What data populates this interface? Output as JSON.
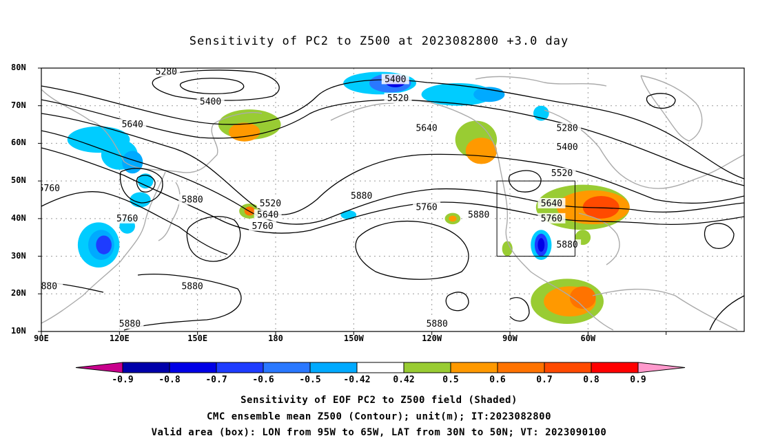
{
  "title": "Sensitivity of PC2 to Z500 at 2023082800 +3.0 day",
  "lat_labels": [
    "80N",
    "70N",
    "60N",
    "50N",
    "40N",
    "30N",
    "20N",
    "10N"
  ],
  "lon_labels": [
    "90E",
    "120E",
    "150E",
    "180",
    "150W",
    "120W",
    "90W",
    "60W"
  ],
  "colorbar": {
    "labels": [
      "-0.9",
      "-0.8",
      "-0.7",
      "-0.6",
      "-0.5",
      "-0.42",
      "0.42",
      "0.5",
      "0.6",
      "0.7",
      "0.8",
      "0.9"
    ],
    "colors": [
      "#c8008c",
      "#0000aa",
      "#0000e6",
      "#1e3cff",
      "#2a78ff",
      "#00aaff",
      "#00ccff",
      "#ffffff",
      "#99cc33",
      "#ff9900",
      "#ff7300",
      "#ff4a00",
      "#ff0000",
      "#ff99cc"
    ]
  },
  "contour_labels": [
    {
      "text": "5280",
      "lon": 138,
      "lat": 79
    },
    {
      "text": "5400",
      "lon": 155,
      "lat": 71
    },
    {
      "text": "5640",
      "lon": 125,
      "lat": 65
    },
    {
      "text": "5760",
      "lon": 93,
      "lat": 48
    },
    {
      "text": "5880",
      "lon": 148,
      "lat": 45
    },
    {
      "text": "5760",
      "lon": 123,
      "lat": 40
    },
    {
      "text": "5520",
      "lon": 178,
      "lat": 44
    },
    {
      "text": "5640",
      "lon": 177,
      "lat": 41
    },
    {
      "text": "5760",
      "lon": 175,
      "lat": 38
    },
    {
      "text": "5880",
      "lon": 148,
      "lat": 22
    },
    {
      "text": "5880",
      "lon": 124,
      "lat": 12
    },
    {
      "text": "880",
      "lon": 93,
      "lat": 22
    },
    {
      "text": "5880",
      "lon": -147,
      "lat": 46
    },
    {
      "text": "5400",
      "lon": -134,
      "lat": 77
    },
    {
      "text": "5520",
      "lon": -133,
      "lat": 72
    },
    {
      "text": "5640",
      "lon": -122,
      "lat": 64
    },
    {
      "text": "5760",
      "lon": -122,
      "lat": 43
    },
    {
      "text": "5880",
      "lon": -102,
      "lat": 41
    },
    {
      "text": "5880",
      "lon": -118,
      "lat": 12
    },
    {
      "text": "5280",
      "lon": -68,
      "lat": 64
    },
    {
      "text": "5400",
      "lon": -68,
      "lat": 59
    },
    {
      "text": "5520",
      "lon": -70,
      "lat": 52
    },
    {
      "text": "5640",
      "lon": -74,
      "lat": 44
    },
    {
      "text": "5760",
      "lon": -74,
      "lat": 40
    },
    {
      "text": "5880",
      "lon": -68,
      "lat": 33
    }
  ],
  "captions": [
    "Sensitivity of EOF PC2 to Z500 field (Shaded)",
    "CMC ensemble mean Z500 (Contour); unit(m); IT:2023082800",
    "Valid area (box): LON from 95W to 65W, LAT from 30N to 50N; VT: 2023090100"
  ]
}
